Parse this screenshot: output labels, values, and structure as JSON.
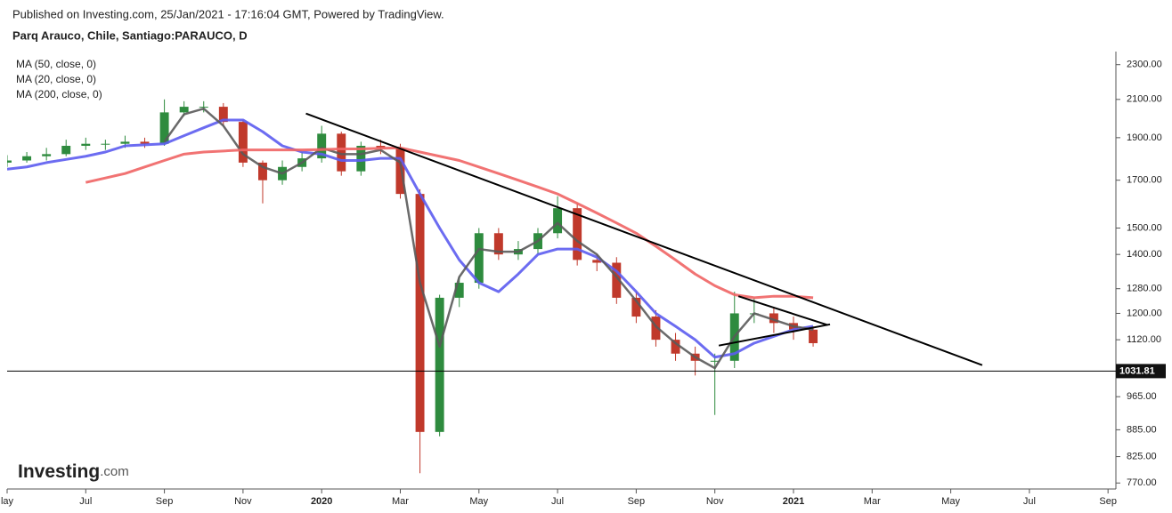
{
  "chart_data": {
    "type": "candlestick",
    "header": "Published on Investing.com, 25/Jan/2021 - 17:16:04 GMT, Powered by TradingView.",
    "title": "Parq Arauco, Chile, Santiago:PARAUCO, D",
    "logo": {
      "brand": "Investing",
      "suffix": ".com"
    },
    "log_scale": true,
    "xlim": [
      0,
      28.2
    ],
    "xticks": [
      {
        "value": 0,
        "label": "lay"
      },
      {
        "value": 2,
        "label": "Jul"
      },
      {
        "value": 4,
        "label": "Sep"
      },
      {
        "value": 6,
        "label": "Nov"
      },
      {
        "value": 8,
        "label": "2020"
      },
      {
        "value": 10,
        "label": "Mar"
      },
      {
        "value": 12,
        "label": "May"
      },
      {
        "value": 14,
        "label": "Jul"
      },
      {
        "value": 16,
        "label": "Sep"
      },
      {
        "value": 18,
        "label": "Nov"
      },
      {
        "value": 20,
        "label": "2021"
      },
      {
        "value": 22,
        "label": "Mar"
      },
      {
        "value": 24,
        "label": "May"
      },
      {
        "value": 26,
        "label": "Jul"
      },
      {
        "value": 28,
        "label": "Sep"
      }
    ],
    "ylim": [
      758,
      2380
    ],
    "yticks": [
      {
        "value": 2300,
        "label": "2300.00"
      },
      {
        "value": 2100,
        "label": "2100.00"
      },
      {
        "value": 1900,
        "label": "1900.00"
      },
      {
        "value": 1700,
        "label": "1700.00"
      },
      {
        "value": 1500,
        "label": "1500.00"
      },
      {
        "value": 1400,
        "label": "1400.00"
      },
      {
        "value": 1280,
        "label": "1280.00"
      },
      {
        "value": 1200,
        "label": "1200.00"
      },
      {
        "value": 1120,
        "label": "1120.00"
      },
      {
        "value": 965,
        "label": "965.00"
      },
      {
        "value": 885,
        "label": "885.00"
      },
      {
        "value": 825,
        "label": "825.00"
      },
      {
        "value": 770,
        "label": "770.00"
      }
    ],
    "up_color": "#2e8b3e",
    "down_color": "#c0392b",
    "x": [
      0,
      0.5,
      1,
      1.5,
      2,
      2.5,
      3,
      3.5,
      4,
      4.5,
      5,
      5.5,
      6,
      6.5,
      7,
      7.5,
      8,
      8.5,
      9,
      9.5,
      10,
      10.5,
      11,
      11.5,
      12,
      12.5,
      13,
      13.5,
      14,
      14.5,
      15,
      15.5,
      16,
      16.5,
      17,
      17.5,
      18,
      18.5,
      19,
      19.5,
      20,
      20.5
    ],
    "open": [
      1780,
      1790,
      1810,
      1820,
      1860,
      1870,
      1870,
      1880,
      1870,
      2030,
      2060,
      2060,
      1980,
      1780,
      1700,
      1760,
      1800,
      1920,
      1740,
      1860,
      1850,
      1640,
      880,
      1250,
      1300,
      1480,
      1400,
      1420,
      1480,
      1580,
      1380,
      1370,
      1250,
      1190,
      1120,
      1080,
      1060,
      1060,
      1200,
      1200,
      1170,
      1150
    ],
    "high": [
      1815,
      1830,
      1850,
      1890,
      1900,
      1890,
      1910,
      1900,
      2100,
      2090,
      2090,
      2080,
      1990,
      1790,
      1790,
      1830,
      1960,
      1930,
      1880,
      1890,
      1870,
      1660,
      1260,
      1320,
      1500,
      1500,
      1450,
      1500,
      1630,
      1600,
      1400,
      1390,
      1270,
      1210,
      1140,
      1100,
      1080,
      1270,
      1250,
      1220,
      1190,
      1160
    ],
    "low": [
      1760,
      1780,
      1790,
      1810,
      1840,
      1840,
      1850,
      1850,
      1860,
      2010,
      2030,
      1960,
      1760,
      1600,
      1680,
      1740,
      1780,
      1720,
      1720,
      1820,
      1620,
      790,
      870,
      1220,
      1280,
      1380,
      1380,
      1400,
      1460,
      1360,
      1340,
      1230,
      1170,
      1100,
      1060,
      1020,
      920,
      1040,
      1170,
      1140,
      1120,
      1100
    ],
    "close": [
      1790,
      1810,
      1820,
      1860,
      1870,
      1870,
      1880,
      1870,
      2030,
      2060,
      2060,
      1980,
      1780,
      1700,
      1760,
      1800,
      1920,
      1740,
      1860,
      1850,
      1640,
      880,
      1250,
      1300,
      1480,
      1400,
      1420,
      1480,
      1580,
      1380,
      1370,
      1250,
      1190,
      1120,
      1080,
      1060,
      1060,
      1200,
      1200,
      1170,
      1150,
      1110
    ],
    "series": [
      {
        "name": "MA (50, close, 0)",
        "color": "#5c5cf0",
        "values": [
          1750,
          1760,
          1780,
          1795,
          1810,
          1830,
          1860,
          1865,
          1870,
          1910,
          1950,
          1990,
          1990,
          1930,
          1860,
          1830,
          1820,
          1790,
          1790,
          1800,
          1800,
          1640,
          1500,
          1380,
          1300,
          1270,
          1330,
          1400,
          1420,
          1420,
          1390,
          1340,
          1270,
          1200,
          1160,
          1120,
          1070,
          1080,
          1110,
          1130,
          1150,
          1160
        ]
      },
      {
        "name": "MA (20, close, 0)",
        "color": "#5a5a5a",
        "values": [
          null,
          null,
          null,
          null,
          null,
          null,
          null,
          null,
          1880,
          2020,
          2050,
          1960,
          1820,
          1760,
          1730,
          1780,
          1850,
          1820,
          1820,
          1840,
          1780,
          1300,
          1100,
          1320,
          1420,
          1410,
          1410,
          1450,
          1520,
          1450,
          1400,
          1320,
          1240,
          1160,
          1110,
          1070,
          1040,
          1130,
          1200,
          1180,
          1160,
          1150
        ]
      },
      {
        "name": "MA (200, close, 0)",
        "color": "#f06464",
        "values": [
          null,
          null,
          null,
          null,
          1690,
          1710,
          1730,
          1760,
          1790,
          1820,
          1830,
          1835,
          1840,
          1840,
          1840,
          1840,
          1842,
          1845,
          1845,
          1848,
          1850,
          1830,
          1810,
          1790,
          1760,
          1730,
          1700,
          1670,
          1640,
          1600,
          1560,
          1520,
          1480,
          1430,
          1380,
          1330,
          1290,
          1260,
          1250,
          1255,
          1255,
          1250
        ]
      }
    ],
    "trendlines": [
      {
        "x": [
          7.6,
          24.8
        ],
        "values": [
          2024,
          1048
        ]
      },
      {
        "x": [
          18.6,
          20.87
        ],
        "values": [
          1255,
          1164
        ]
      },
      {
        "x": [
          18.1,
          20.93
        ],
        "values": [
          1103,
          1166
        ]
      }
    ],
    "last_price": 1031.81
  }
}
